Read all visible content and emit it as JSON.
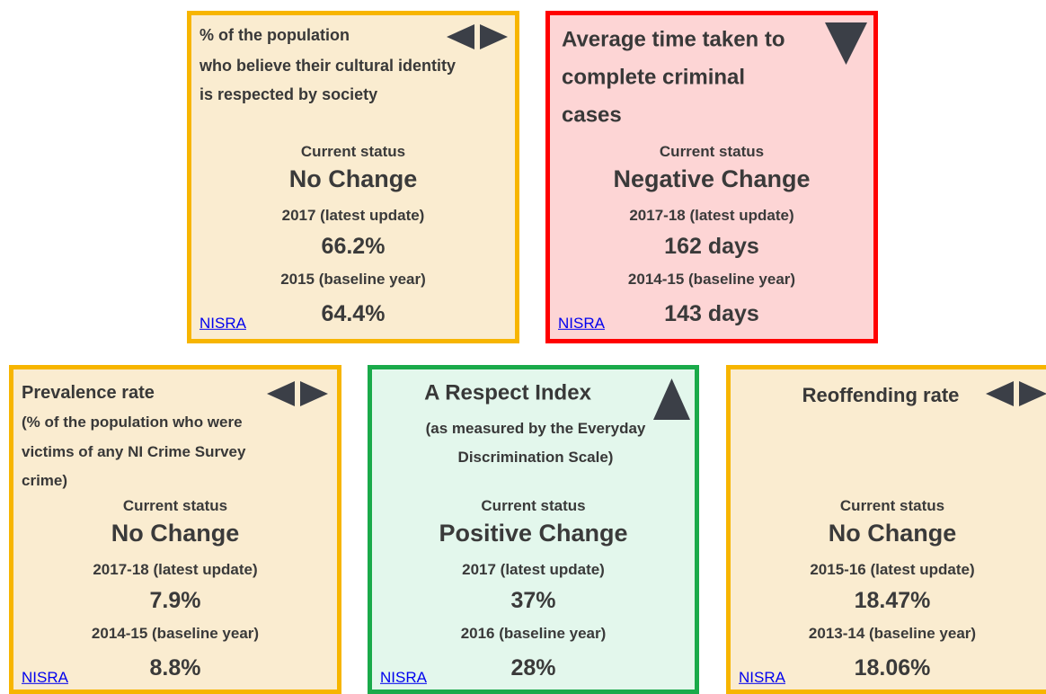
{
  "cards": [
    {
      "title": [
        "% of the population",
        "who believe their cultural identity",
        "is respected by society"
      ],
      "status_label": "Current status",
      "status": "No Change",
      "latest_label": "2017 (latest update)",
      "latest_value": "66.2%",
      "baseline_label": "2015 (baseline year)",
      "baseline_value": "64.4%",
      "link": "NISRA"
    },
    {
      "title": [
        "Average time taken to",
        "complete criminal",
        "cases"
      ],
      "status_label": "Current status",
      "status": "Negative Change",
      "latest_label": "2017-18 (latest update)",
      "latest_value": "162 days",
      "baseline_label": "2014-15 (baseline year)",
      "baseline_value": "143 days",
      "link": "NISRA"
    },
    {
      "title": [
        "Prevalence rate"
      ],
      "subtitle": [
        "(% of the population who were",
        "victims of any NI Crime Survey",
        "crime)"
      ],
      "status_label": "Current status",
      "status": "No Change",
      "latest_label": "2017-18 (latest update)",
      "latest_value": "7.9%",
      "baseline_label": "2014-15 (baseline year)",
      "baseline_value": "8.8%",
      "link": "NISRA"
    },
    {
      "title": [
        "A Respect Index"
      ],
      "subtitle": [
        "(as measured by the Everyday",
        "Discrimination Scale)"
      ],
      "status_label": "Current status",
      "status": "Positive Change",
      "latest_label": "2017 (latest update)",
      "latest_value": "37%",
      "baseline_label": "2016 (baseline year)",
      "baseline_value": "28%",
      "link": "NISRA"
    },
    {
      "title": [
        "Reoffending rate"
      ],
      "status_label": "Current status",
      "status": "No Change",
      "latest_label": "2015-16 (latest update)",
      "latest_value": "18.47%",
      "baseline_label": "2013-14 (baseline year)",
      "baseline_value": "18.06%",
      "link": "NISRA"
    }
  ]
}
